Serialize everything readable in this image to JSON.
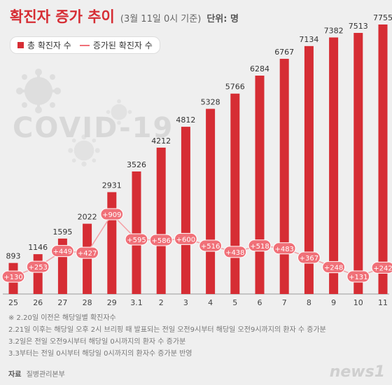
{
  "header": {
    "title": "확진자 증가 추이",
    "subtitle": "(3월 11일 0시 기준)",
    "unit": "단위: 명"
  },
  "legend": {
    "total_label": "총 확진자 수",
    "increase_label": "증가된 확진자 수"
  },
  "watermark": "COVID-19",
  "notes": [
    "※ 2.20일 이전은 해당일별 확진자수",
    "2.21일 이후는 해당일 오후 2시 브리핑 때 발표되는 전일 오전9시부터 해당일 오전9시까지의 환자 수 증가분",
    "3.2일은 전일 오전9시부터 해당일 0시까지의 환자 수 증가분",
    "3.3부터는 전일 0시부터 해당일 0시까지의 환자수 증가분 반영"
  ],
  "source": {
    "label": "자료",
    "text": "질병관리본부"
  },
  "logo": "news1",
  "colors": {
    "bar": "#d62d34",
    "line": "#f07078",
    "label_fill": "#f07078"
  },
  "chart_data": {
    "type": "bar",
    "categories": [
      "25",
      "26",
      "27",
      "28",
      "29",
      "3.1",
      "2",
      "3",
      "4",
      "5",
      "6",
      "7",
      "8",
      "9",
      "10",
      "11"
    ],
    "series": [
      {
        "name": "총 확진자 수",
        "type": "bar",
        "values": [
          893,
          1146,
          1595,
          2022,
          2931,
          3526,
          4212,
          4812,
          5328,
          5766,
          6284,
          6767,
          7134,
          7382,
          7513,
          7755
        ]
      },
      {
        "name": "증가된 확진자 수",
        "type": "line",
        "values": [
          130,
          253,
          449,
          427,
          909,
          595,
          586,
          600,
          516,
          438,
          518,
          483,
          367,
          248,
          131,
          242
        ],
        "labels": [
          "+130",
          "+253",
          "+449",
          "+427",
          "+909",
          "+595",
          "+586",
          "+600",
          "+516",
          "+438",
          "+518",
          "+483",
          "+367",
          "+248",
          "+131",
          "+242"
        ]
      }
    ],
    "ylim": [
      0,
      7755
    ],
    "xlabel": "",
    "ylabel": ""
  }
}
